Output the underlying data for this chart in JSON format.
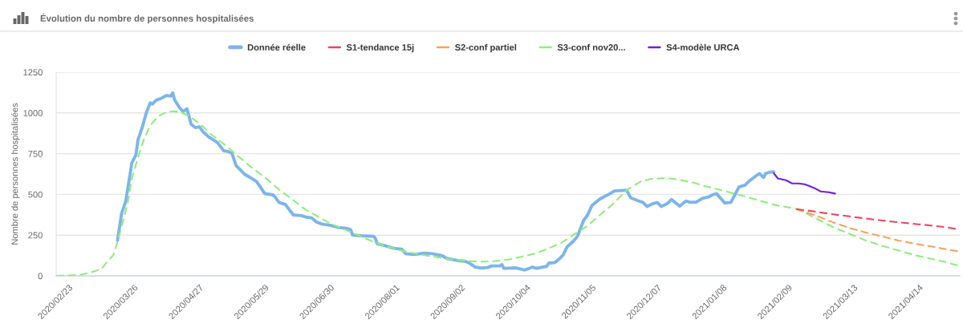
{
  "chart_data": {
    "type": "line",
    "title": "Évolution du nombre de personnes hospitalisées",
    "ylabel": "Nombre de personnes hospitalisées",
    "xlim": [
      "2020-02-17",
      "2021-05-04"
    ],
    "xticks": [
      {
        "value": "2020-02-23",
        "label": "2020/02/23"
      },
      {
        "value": "2020-03-26",
        "label": "2020/03/26"
      },
      {
        "value": "2020-04-27",
        "label": "2020/04/27"
      },
      {
        "value": "2020-05-29",
        "label": "2020/05/29"
      },
      {
        "value": "2020-06-30",
        "label": "2020/06/30"
      },
      {
        "value": "2020-08-01",
        "label": "2020/08/01"
      },
      {
        "value": "2020-09-02",
        "label": "2020/09/02"
      },
      {
        "value": "2020-10-04",
        "label": "2020/10/04"
      },
      {
        "value": "2020-11-05",
        "label": "2020/11/05"
      },
      {
        "value": "2020-12-07",
        "label": "2020/12/07"
      },
      {
        "value": "2021-01-08",
        "label": "2021/01/08"
      },
      {
        "value": "2021-02-09",
        "label": "2021/02/09"
      },
      {
        "value": "2021-03-13",
        "label": "2021/03/13"
      },
      {
        "value": "2021-04-14",
        "label": "2021/04/14"
      }
    ],
    "ylim": [
      0,
      1250
    ],
    "yticks": [
      0,
      250,
      500,
      750,
      1000,
      1250
    ],
    "grid": "y",
    "legend": "top",
    "series": [
      {
        "name": "Donnée réelle",
        "color": "#7cb5ec",
        "line_style": "solid",
        "x": [
          "2020-03-18",
          "2020-03-20",
          "2020-03-22",
          "2020-03-24",
          "2020-03-25",
          "2020-03-27",
          "2020-03-28",
          "2020-03-30",
          "2020-04-01",
          "2020-04-03",
          "2020-04-04",
          "2020-04-06",
          "2020-04-08",
          "2020-04-11",
          "2020-04-13",
          "2020-04-14",
          "2020-04-15",
          "2020-04-17",
          "2020-04-19",
          "2020-04-21",
          "2020-04-23",
          "2020-04-25",
          "2020-04-27",
          "2020-04-29",
          "2020-05-02",
          "2020-05-04",
          "2020-05-06",
          "2020-05-09",
          "2020-05-11",
          "2020-05-13",
          "2020-05-15",
          "2020-05-17",
          "2020-05-19",
          "2020-05-22",
          "2020-05-25",
          "2020-05-27",
          "2020-05-29",
          "2020-06-02",
          "2020-06-03",
          "2020-06-05",
          "2020-06-08",
          "2020-06-10",
          "2020-06-12",
          "2020-06-16",
          "2020-06-18",
          "2020-06-21",
          "2020-06-23",
          "2020-06-26",
          "2020-06-30",
          "2020-07-04",
          "2020-07-08",
          "2020-07-10",
          "2020-07-11",
          "2020-07-15",
          "2020-07-21",
          "2020-07-22",
          "2020-07-23",
          "2020-07-27",
          "2020-07-31",
          "2020-08-04",
          "2020-08-06",
          "2020-08-10",
          "2020-08-15",
          "2020-08-19",
          "2020-08-24",
          "2020-08-26",
          "2020-08-31",
          "2020-09-04",
          "2020-09-06",
          "2020-09-09",
          "2020-09-12",
          "2020-09-15",
          "2020-09-17",
          "2020-09-21",
          "2020-09-22",
          "2020-09-23",
          "2020-09-29",
          "2020-10-03",
          "2020-10-05",
          "2020-10-07",
          "2020-10-09",
          "2020-10-14",
          "2020-10-15",
          "2020-10-18",
          "2020-10-20",
          "2020-10-22",
          "2020-10-24",
          "2020-10-27",
          "2020-10-29",
          "2020-10-30",
          "2020-11-01",
          "2020-11-03",
          "2020-11-05",
          "2020-11-09",
          "2020-11-12",
          "2020-11-14",
          "2020-11-16",
          "2020-11-22",
          "2020-11-24",
          "2020-11-27",
          "2020-11-30",
          "2020-12-02",
          "2020-12-05",
          "2020-12-07",
          "2020-12-09",
          "2020-12-12",
          "2020-12-14",
          "2020-12-18",
          "2020-12-21",
          "2020-12-23",
          "2020-12-26",
          "2020-12-29",
          "2021-01-01",
          "2021-01-03",
          "2021-01-05",
          "2021-01-09",
          "2021-01-12",
          "2021-01-14",
          "2021-01-16",
          "2021-01-19",
          "2021-01-21",
          "2021-01-25",
          "2021-01-26",
          "2021-01-28",
          "2021-01-29",
          "2021-01-31",
          "2021-02-02"
        ],
        "values": [
          218,
          382,
          456,
          611,
          693,
          743,
          833,
          907,
          997,
          1062,
          1054,
          1079,
          1087,
          1107,
          1103,
          1123,
          1079,
          1038,
          1008,
          1025,
          931,
          910,
          915,
          882,
          849,
          833,
          816,
          767,
          764,
          751,
          677,
          652,
          625,
          603,
          579,
          543,
          505,
          497,
          485,
          451,
          439,
          407,
          374,
          370,
          361,
          356,
          333,
          318,
          311,
          297,
          292,
          284,
          251,
          246,
          243,
          234,
          198,
          185,
          169,
          164,
          136,
          131,
          139,
          136,
          123,
          107,
          95,
          90,
          79,
          54,
          48,
          51,
          61,
          61,
          70,
          46,
          49,
          36,
          44,
          54,
          46,
          59,
          79,
          82,
          103,
          128,
          180,
          213,
          243,
          275,
          341,
          374,
          431,
          472,
          492,
          505,
          521,
          526,
          480,
          464,
          451,
          426,
          444,
          451,
          426,
          444,
          469,
          428,
          459,
          452,
          452,
          475,
          484,
          497,
          505,
          448,
          451,
          497,
          546,
          557,
          582,
          620,
          628,
          603,
          628,
          636,
          639
        ]
      },
      {
        "name": "S1-tendance 15j",
        "color": "#f0435f",
        "line_style": "dashed",
        "x": [
          "2021-02-13",
          "2021-02-22",
          "2021-03-03",
          "2021-03-11",
          "2021-03-19",
          "2021-03-27",
          "2021-04-04",
          "2021-04-12",
          "2021-04-20",
          "2021-04-27",
          "2021-05-02"
        ],
        "values": [
          410,
          395,
          378,
          365,
          352,
          340,
          329,
          319,
          309,
          299,
          288
        ]
      },
      {
        "name": "S2-conf partiel",
        "color": "#f7a35c",
        "line_style": "dashed",
        "x": [
          "2021-02-13",
          "2021-02-22",
          "2021-03-03",
          "2021-03-11",
          "2021-03-19",
          "2021-03-27",
          "2021-04-04",
          "2021-04-12",
          "2021-04-20",
          "2021-04-27",
          "2021-05-03"
        ],
        "values": [
          410,
          373,
          329,
          294,
          266,
          242,
          217,
          197,
          181,
          164,
          151
        ]
      },
      {
        "name": "S3-conf nov20...",
        "color": "#90ed7d",
        "line_style": "dashed",
        "x": [
          "2020-02-17",
          "2020-02-28",
          "2020-03-04",
          "2020-03-10",
          "2020-03-13",
          "2020-03-16",
          "2020-03-18",
          "2020-03-20",
          "2020-03-23",
          "2020-03-25",
          "2020-03-28",
          "2020-03-31",
          "2020-04-03",
          "2020-04-07",
          "2020-04-11",
          "2020-04-14",
          "2020-04-18",
          "2020-04-22",
          "2020-04-27",
          "2020-05-03",
          "2020-05-10",
          "2020-05-16",
          "2020-05-23",
          "2020-05-30",
          "2020-06-05",
          "2020-06-12",
          "2020-06-18",
          "2020-06-25",
          "2020-07-01",
          "2020-07-08",
          "2020-07-15",
          "2020-07-21",
          "2020-07-28",
          "2020-08-03",
          "2020-08-10",
          "2020-08-16",
          "2020-08-23",
          "2020-08-29",
          "2020-09-05",
          "2020-09-12",
          "2020-09-18",
          "2020-09-25",
          "2020-10-01",
          "2020-10-08",
          "2020-10-14",
          "2020-10-21",
          "2020-10-27",
          "2020-11-03",
          "2020-11-09",
          "2020-11-16",
          "2020-11-22",
          "2020-11-25",
          "2020-11-29",
          "2020-12-04",
          "2020-12-11",
          "2020-12-17",
          "2020-12-24",
          "2020-12-31",
          "2021-01-07",
          "2021-01-21",
          "2021-02-03",
          "2021-02-14",
          "2021-02-22",
          "2021-03-03",
          "2021-03-11",
          "2021-03-19",
          "2021-03-27",
          "2021-04-04",
          "2021-04-12",
          "2021-04-20",
          "2021-04-27",
          "2021-05-03"
        ],
        "values": [
          0,
          5,
          18,
          41,
          87,
          128,
          210,
          300,
          448,
          595,
          726,
          841,
          923,
          980,
          1005,
          1010,
          1005,
          980,
          936,
          866,
          800,
          734,
          661,
          595,
          530,
          464,
          407,
          357,
          316,
          280,
          243,
          210,
          180,
          157,
          139,
          125,
          111,
          100,
          92,
          87,
          90,
          100,
          116,
          136,
          164,
          202,
          251,
          308,
          374,
          448,
          526,
          549,
          579,
          595,
          600,
          592,
          574,
          549,
          527,
          480,
          434,
          409,
          357,
          299,
          258,
          217,
          184,
          156,
          127,
          105,
          85,
          64
        ]
      },
      {
        "name": "S4-modèle URCA",
        "color": "#7020e0",
        "line_style": "solid",
        "x": [
          "2021-02-02",
          "2021-02-04",
          "2021-02-08",
          "2021-02-11",
          "2021-02-14",
          "2021-02-17",
          "2021-02-19",
          "2021-02-22",
          "2021-02-25",
          "2021-03-01",
          "2021-03-04"
        ],
        "values": [
          630,
          598,
          587,
          567,
          567,
          562,
          554,
          538,
          518,
          513,
          505
        ]
      }
    ]
  }
}
